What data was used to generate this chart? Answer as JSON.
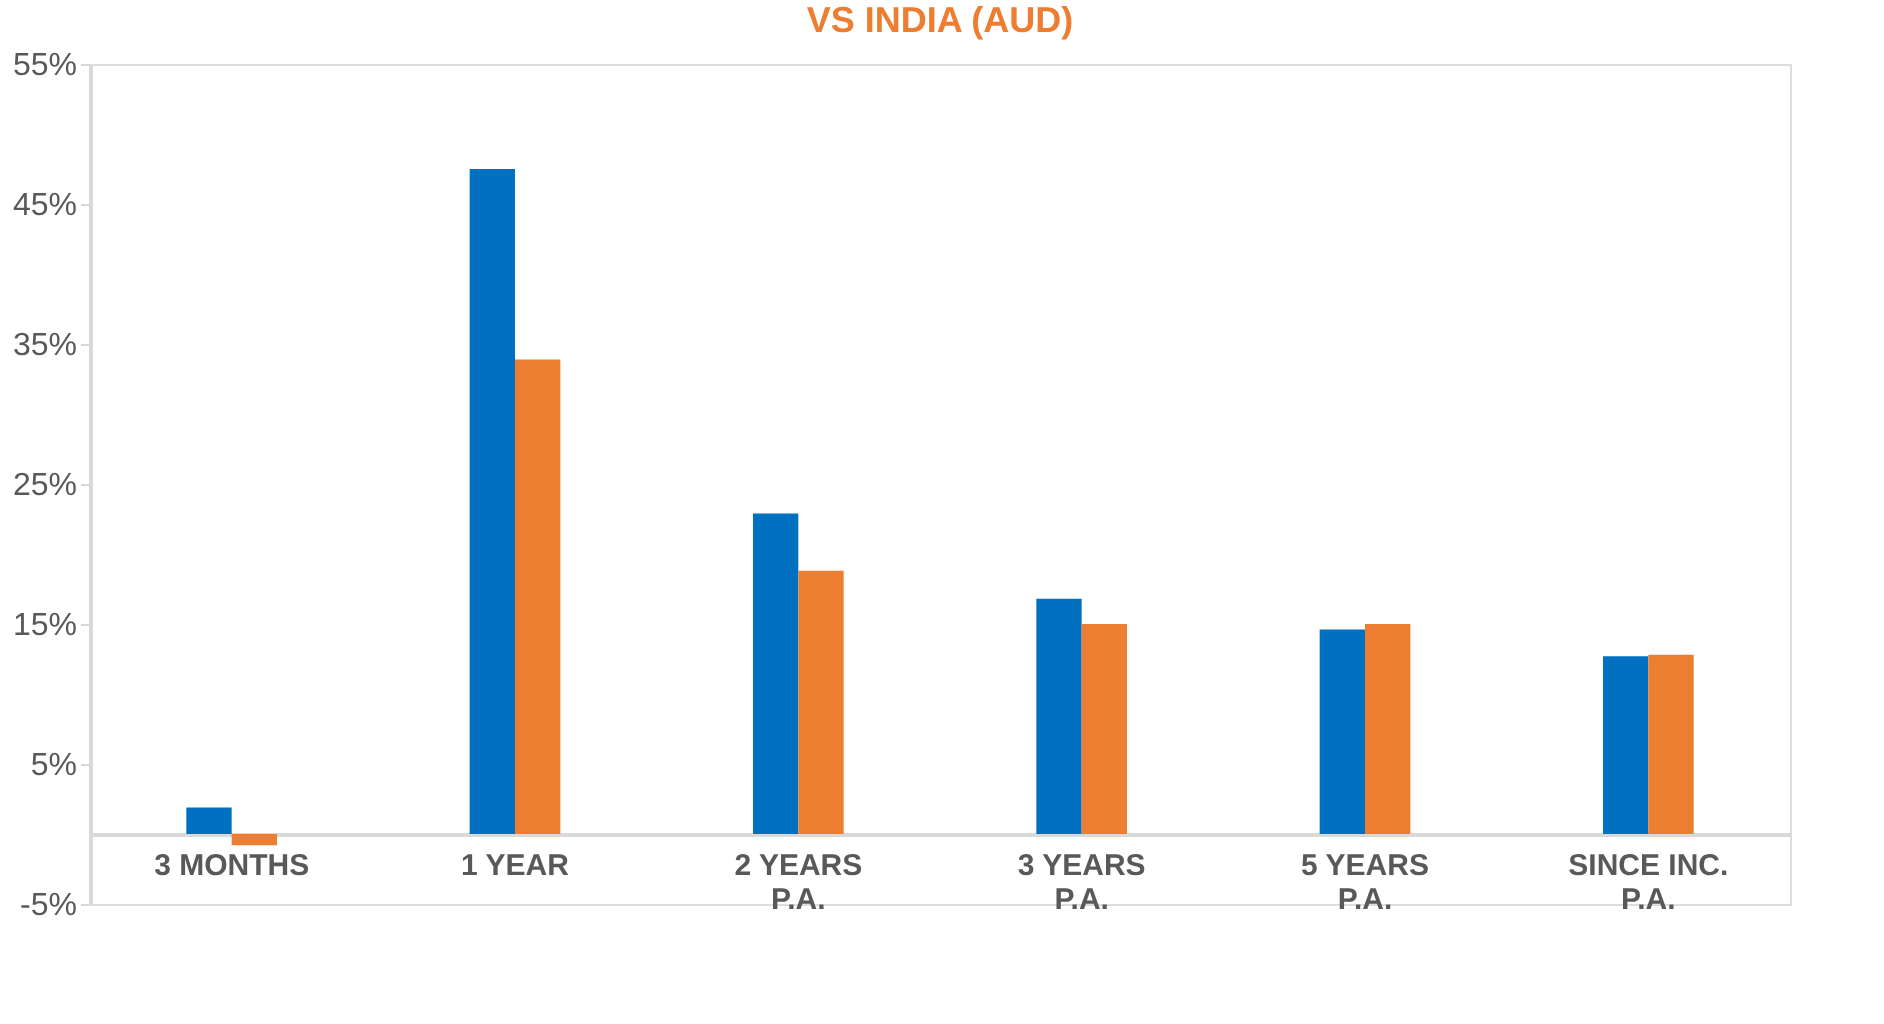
{
  "chart_data": {
    "type": "bar",
    "title": "VS INDIA (AUD)",
    "categories": [
      "3 MONTHS",
      "1 YEAR",
      "2 YEARS\nP.A.",
      "3 YEARS\nP.A.",
      "5 YEARS\nP.A.",
      "SINCE INC.\nP.A."
    ],
    "series": [
      {
        "color": "#0070c0",
        "values": [
          1.9,
          47.5,
          22.9,
          16.8,
          14.6,
          12.7
        ]
      },
      {
        "color": "#ed7d31",
        "values": [
          -0.8,
          33.9,
          18.8,
          15.0,
          15.0,
          12.8
        ]
      }
    ],
    "ylim": [
      -5,
      55
    ],
    "yticks": [
      {
        "value": -5,
        "label": "-5%"
      },
      {
        "value": 5,
        "label": "5%"
      },
      {
        "value": 15,
        "label": "15%"
      },
      {
        "value": 25,
        "label": "25%"
      },
      {
        "value": 35,
        "label": "35%"
      },
      {
        "value": 45,
        "label": "45%"
      },
      {
        "value": 55,
        "label": "55%"
      }
    ],
    "grid": false,
    "legend": false
  }
}
